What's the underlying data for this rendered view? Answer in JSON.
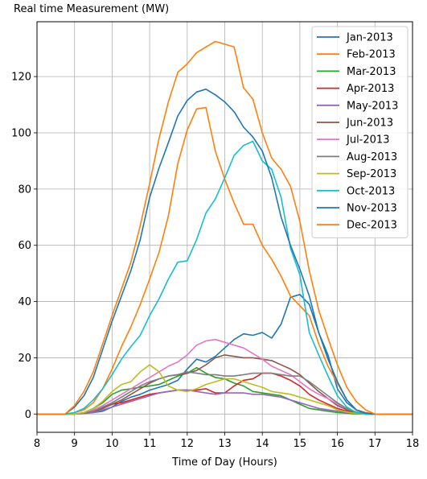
{
  "chart_data": {
    "type": "line",
    "title": "Real time Measurement (MW)",
    "xlabel": "Time of Day (Hours)",
    "ylabel": "",
    "xlim": [
      8,
      18
    ],
    "ylim": [
      -6.5,
      139.5
    ],
    "xticks": [
      8,
      9,
      10,
      11,
      12,
      13,
      14,
      15,
      16,
      17,
      18
    ],
    "yticks": [
      0,
      20,
      40,
      60,
      80,
      100,
      120
    ],
    "grid": true,
    "legend_position": "top-right",
    "x": [
      8.0,
      8.25,
      8.5,
      8.75,
      9.0,
      9.25,
      9.5,
      9.75,
      10.0,
      10.25,
      10.5,
      10.75,
      11.0,
      11.25,
      11.5,
      11.75,
      12.0,
      12.25,
      12.5,
      12.75,
      13.0,
      13.25,
      13.5,
      13.75,
      14.0,
      14.25,
      14.5,
      14.75,
      15.0,
      15.25,
      15.5,
      15.75,
      16.0,
      16.25,
      16.5,
      16.75,
      17.0,
      17.25,
      17.5,
      17.75,
      18.0
    ],
    "series": [
      {
        "name": "Jan-2013",
        "color": "#1f77b4",
        "values": [
          0,
          0,
          0,
          0,
          0,
          0.2,
          0.5,
          1,
          2.5,
          4.5,
          6,
          7,
          8.5,
          9.5,
          10.5,
          12,
          16,
          19.5,
          18.5,
          20.5,
          23.5,
          26.5,
          28.5,
          28,
          29,
          27,
          32,
          41.5,
          42.5,
          39,
          29,
          21,
          9,
          4,
          1.5,
          0.5,
          0,
          0,
          0,
          0,
          0
        ]
      },
      {
        "name": "Feb-2013",
        "color": "#ff7f0e",
        "values": [
          0,
          0,
          0,
          0,
          0.5,
          1.5,
          4,
          9,
          16,
          24,
          31,
          39,
          48,
          57.5,
          70.5,
          89,
          101,
          108.5,
          109,
          93.5,
          83.5,
          75,
          67.5,
          67.5,
          60,
          55,
          49,
          42,
          38.5,
          35,
          25,
          17,
          11,
          5,
          1.5,
          0.5,
          0,
          0,
          0,
          0,
          0
        ]
      },
      {
        "name": "Mar-2013",
        "color": "#2ca02c",
        "values": [
          0,
          0,
          0,
          0,
          0,
          0.5,
          2,
          4,
          7,
          8.5,
          9,
          9.5,
          10,
          10.5,
          12,
          13.5,
          14.5,
          16.5,
          14.5,
          13,
          12.5,
          11,
          10,
          8,
          7.5,
          7,
          6.5,
          5,
          3.5,
          2,
          1.5,
          1,
          0.5,
          0.3,
          0,
          0,
          0,
          0,
          0,
          0,
          0
        ]
      },
      {
        "name": "Apr-2013",
        "color": "#d62728",
        "values": [
          0,
          0,
          0,
          0,
          0,
          0.2,
          0.8,
          2,
          3.5,
          4,
          5,
          6,
          7,
          7.5,
          8,
          8.5,
          8.5,
          8.5,
          9,
          7.5,
          7.5,
          10,
          12,
          12.5,
          14.5,
          14.5,
          13.5,
          12,
          10,
          7,
          5,
          3.5,
          2,
          1,
          0.3,
          0,
          0,
          0,
          0,
          0,
          0
        ]
      },
      {
        "name": "May-2013",
        "color": "#9467bd",
        "values": [
          0,
          0,
          0,
          0,
          0,
          0.2,
          0.5,
          1.5,
          2.5,
          3.5,
          4.5,
          5.5,
          6.5,
          7.5,
          8,
          8.5,
          8.5,
          8,
          7.5,
          7,
          7.5,
          7.5,
          7.5,
          7,
          7,
          6.5,
          6,
          5,
          4,
          3,
          2,
          1.5,
          1,
          0.5,
          0.2,
          0,
          0,
          0,
          0,
          0,
          0
        ]
      },
      {
        "name": "Jun-2013",
        "color": "#8c564b",
        "values": [
          0,
          0,
          0,
          0,
          0,
          0.3,
          1,
          2,
          3.5,
          5,
          7,
          9,
          11,
          12.5,
          13.5,
          14,
          14.5,
          15.5,
          17.5,
          20,
          21,
          20.5,
          20,
          20,
          19.5,
          19,
          17.5,
          16,
          14,
          11,
          8,
          5.5,
          3,
          1.5,
          0.5,
          0,
          0,
          0,
          0,
          0,
          0
        ]
      },
      {
        "name": "Jul-2013",
        "color": "#e377c2",
        "values": [
          0,
          0,
          0,
          0,
          0,
          0.5,
          1.5,
          3,
          5,
          7,
          9,
          11,
          13,
          15,
          17,
          18.5,
          21,
          24.5,
          26,
          26.5,
          25.5,
          24.5,
          23.5,
          21.5,
          19.5,
          17,
          15.5,
          14,
          11.5,
          9,
          7,
          5.5,
          3.5,
          2,
          0.7,
          0.2,
          0,
          0,
          0,
          0,
          0
        ]
      },
      {
        "name": "Aug-2013",
        "color": "#7f7f7f",
        "values": [
          0,
          0,
          0,
          0,
          0,
          0.3,
          1,
          2.5,
          4,
          6,
          8,
          10,
          11.5,
          12.5,
          13.5,
          14,
          15,
          14.5,
          14,
          14,
          13.5,
          13.5,
          14,
          14.5,
          14.5,
          14.5,
          14,
          13.5,
          13.5,
          11.5,
          9,
          6.5,
          4,
          2,
          0.7,
          0.2,
          0,
          0,
          0,
          0,
          0
        ]
      },
      {
        "name": "Sep-2013",
        "color": "#bcbd22",
        "values": [
          0,
          0,
          0,
          0,
          0,
          0.5,
          2,
          4.5,
          8,
          10.5,
          11.5,
          15,
          17.5,
          15,
          10,
          8.5,
          8,
          9,
          10.5,
          11.5,
          12.5,
          12.5,
          11.5,
          10.5,
          9.5,
          8,
          7.5,
          7,
          6,
          5,
          4,
          3,
          1.5,
          0.7,
          0.2,
          0,
          0,
          0,
          0,
          0,
          0
        ]
      },
      {
        "name": "Oct-2013",
        "color": "#17becf",
        "values": [
          0,
          0,
          0,
          0,
          0.5,
          2,
          5,
          9,
          14,
          19.5,
          24,
          28,
          35,
          41,
          48,
          54,
          54.5,
          62,
          71.5,
          76.5,
          84,
          92,
          95.5,
          97,
          90,
          87,
          77,
          59,
          49.5,
          29,
          21,
          13.5,
          6.5,
          2.5,
          0.5,
          0,
          0,
          0,
          0,
          0,
          0
        ]
      },
      {
        "name": "Nov-2013",
        "color": "#1f77b4",
        "values": [
          0,
          0,
          0,
          0,
          2.5,
          6.5,
          13,
          23,
          33,
          42,
          51,
          62,
          77,
          87.5,
          96.5,
          106,
          111.5,
          114.5,
          115.5,
          113.5,
          111,
          107.5,
          102,
          98.5,
          93.5,
          84,
          70,
          60,
          51.5,
          42,
          29,
          19.5,
          11.5,
          5,
          1.5,
          0.3,
          0,
          0,
          0,
          0,
          0
        ]
      },
      {
        "name": "Dec-2013",
        "color": "#ff7f0e",
        "values": [
          0,
          0,
          0,
          0,
          3,
          8,
          15,
          25,
          35,
          44.5,
          54,
          67,
          82,
          98,
          111,
          121.5,
          124.5,
          128.5,
          130.5,
          132.5,
          131.5,
          130.5,
          116,
          112,
          100,
          91,
          87,
          81,
          68.5,
          51,
          37,
          27,
          17.5,
          9.5,
          4.5,
          1.5,
          0,
          0,
          0,
          0,
          0
        ]
      }
    ]
  }
}
